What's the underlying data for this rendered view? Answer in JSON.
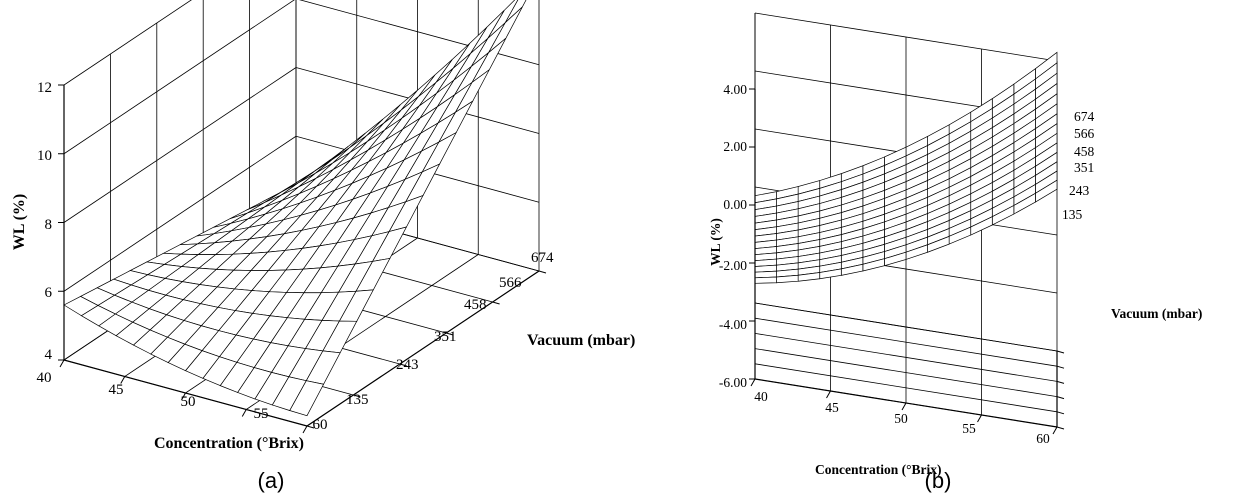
{
  "chart_data": [
    {
      "type": "surface",
      "panel_label": "(a)",
      "xlabel": "Concentration (°Brix)",
      "ylabel": "Vacuum (mbar)",
      "zlabel": "WL (%)",
      "x_ticks": [
        "40",
        "45",
        "50",
        "55",
        "60"
      ],
      "y_ticks": [
        "135",
        "243",
        "351",
        "458",
        "566",
        "674"
      ],
      "z_ticks": [
        "4",
        "6",
        "8",
        "10",
        "12"
      ],
      "xlim": [
        40,
        60
      ],
      "ylim": [
        135,
        674
      ],
      "zlim": [
        4,
        12
      ],
      "grid": true,
      "surface_corner_values": [
        {
          "x": 40,
          "y": 135,
          "z": 5.6
        },
        {
          "x": 60,
          "y": 135,
          "z": 4.3
        },
        {
          "x": 40,
          "y": 674,
          "z": 4.6
        },
        {
          "x": 60,
          "y": 674,
          "z": 12.6
        }
      ]
    },
    {
      "type": "surface",
      "panel_label": "(b)",
      "xlabel": "Concentration (°Brix)",
      "ylabel": "Vacuum (mbar)",
      "zlabel": "WL (%)",
      "x_ticks": [
        "40",
        "45",
        "50",
        "55",
        "60"
      ],
      "y_ticks": [
        "135",
        "243",
        "351",
        "458",
        "566",
        "674"
      ],
      "z_ticks": [
        "-6.00",
        "-4.00",
        "-2.00",
        "0.00",
        "2.00",
        "4.00"
      ],
      "xlim": [
        40,
        60
      ],
      "ylim": [
        135,
        674
      ],
      "zlim": [
        -6,
        4
      ],
      "grid": true,
      "surface_corner_values": [
        {
          "x": 40,
          "y": 135,
          "z": -2.7
        },
        {
          "x": 60,
          "y": 135,
          "z": 2.2
        },
        {
          "x": 40,
          "y": 674,
          "z": -2.3
        },
        {
          "x": 60,
          "y": 674,
          "z": 4.3
        }
      ]
    }
  ]
}
